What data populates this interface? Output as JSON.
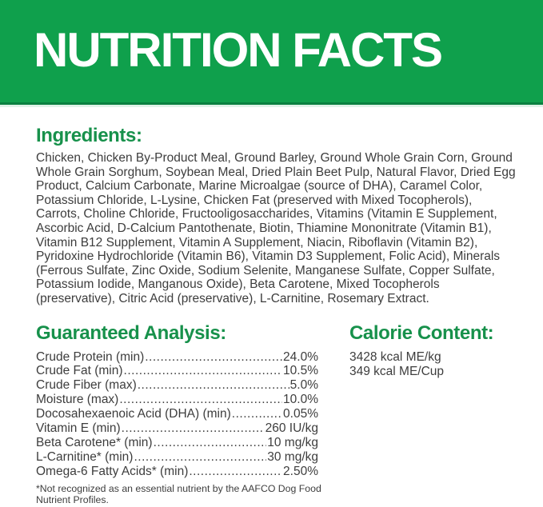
{
  "banner": {
    "title": "NUTRITION FACTS"
  },
  "ingredients": {
    "heading": "Ingredients:",
    "text": "Chicken, Chicken By-Product Meal, Ground Barley, Ground Whole Grain Corn, Ground Whole Grain Sorghum, Soybean Meal, Dried Plain Beet Pulp, Natural Flavor, Dried Egg Product, Calcium Carbonate, Marine Microalgae (source of DHA), Caramel Color, Potassium Chloride, L-Lysine, Chicken Fat (preserved with Mixed Tocopherols), Carrots, Choline Chloride, Fructooligosaccharides, Vitamins (Vitamin E Supplement, Ascorbic Acid, D-Calcium Pantothenate, Biotin, Thiamine Mononitrate (Vitamin B1), Vitamin B12 Supplement, Vitamin A Supplement, Niacin, Riboflavin (Vitamin B2), Pyridoxine Hydrochloride (Vitamin B6), Vitamin D3 Supplement, Folic Acid), Minerals (Ferrous Sulfate, Zinc Oxide, Sodium Selenite, Manganese Sulfate, Copper Sulfate, Potassium Iodide, Manganous Oxide), Beta Carotene, Mixed Tocopherols (preservative), Citric Acid (preservative), L-Carnitine, Rosemary Extract."
  },
  "guaranteed_analysis": {
    "heading": "Guaranteed Analysis:",
    "rows": [
      {
        "label": "Crude Protein (min)",
        "value": "24.0%"
      },
      {
        "label": "Crude Fat (min)",
        "value": "10.5%"
      },
      {
        "label": "Crude Fiber (max)",
        "value": "5.0%"
      },
      {
        "label": "Moisture (max)",
        "value": "10.0%"
      },
      {
        "label": "Docosahexaenoic Acid (DHA) (min)",
        "value": "0.05%"
      },
      {
        "label": "Vitamin E (min)",
        "value": "260 IU/kg"
      },
      {
        "label": "Beta Carotene* (min)",
        "value": "10 mg/kg"
      },
      {
        "label": "L-Carnitine* (min)",
        "value": "30 mg/kg"
      },
      {
        "label": "Omega-6 Fatty Acids* (min)",
        "value": "2.50%"
      }
    ],
    "footnote": "*Not recognized as an essential nutrient by the AAFCO Dog Food Nutrient Profiles."
  },
  "calorie_content": {
    "heading": "Calorie Content:",
    "lines": [
      "3428 kcal ME/kg",
      "349 kcal ME/Cup"
    ]
  },
  "colors": {
    "banner-green": "#0FA04C",
    "banner-edge-green": "#0A8040",
    "heading-green": "#17914B",
    "body-text": "#3D3D3D"
  }
}
